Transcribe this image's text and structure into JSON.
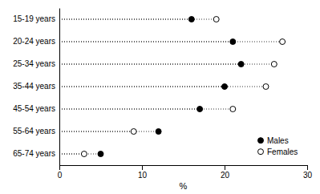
{
  "chart_data": {
    "type": "dot",
    "orientation": "horizontal",
    "categories": [
      "15-19 years",
      "20-24 years",
      "25-34 years",
      "35-44 years",
      "45-54 years",
      "55-64 years",
      "65-74 years"
    ],
    "series": [
      {
        "name": "Males",
        "color": "black",
        "marker": "circle",
        "values": [
          16,
          21,
          22,
          20,
          17,
          12,
          5
        ]
      },
      {
        "name": "Females",
        "color": "black",
        "marker": "circle-open",
        "values": [
          19,
          27,
          26,
          25,
          21,
          9,
          3
        ]
      }
    ],
    "xlabel": "%",
    "xlim": [
      0,
      30
    ],
    "xticks": [
      0,
      10,
      20,
      30
    ],
    "legend": "lower right"
  }
}
